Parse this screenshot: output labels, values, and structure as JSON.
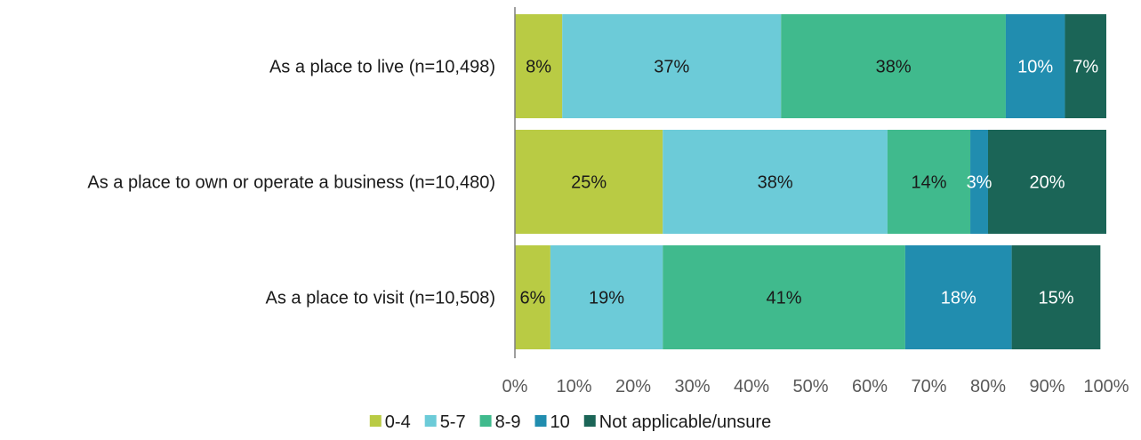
{
  "chart_data": {
    "type": "bar",
    "orientation": "horizontal",
    "stacked": true,
    "categories": [
      "As a place to live (n=10,498)",
      "As a place to own or operate a business (n=10,480)",
      "As a place to visit (n=10,508)"
    ],
    "series": [
      {
        "name": "0-4",
        "values": [
          8,
          25,
          6
        ],
        "labels": [
          "8%",
          "25%",
          "6%"
        ],
        "color": "#B9CB44",
        "label_color": "#1a1a1a"
      },
      {
        "name": "5-7",
        "values": [
          37,
          38,
          19
        ],
        "labels": [
          "37%",
          "38%",
          "19%"
        ],
        "color": "#6CCBD8",
        "label_color": "#1a1a1a"
      },
      {
        "name": "8-9",
        "values": [
          38,
          14,
          41
        ],
        "labels": [
          "38%",
          "14%",
          "41%"
        ],
        "color": "#40BA8D",
        "label_color": "#1a1a1a"
      },
      {
        "name": "10",
        "values": [
          10,
          3,
          18
        ],
        "labels": [
          "10%",
          "3%",
          "18%"
        ],
        "color": "#218DAF",
        "label_color": "#ffffff"
      },
      {
        "name": "Not applicable/unsure",
        "values": [
          7,
          20,
          15
        ],
        "labels": [
          "7%",
          "20%",
          "15%"
        ],
        "color": "#1B6557",
        "label_color": "#ffffff"
      }
    ],
    "x_ticks": [
      "0%",
      "10%",
      "20%",
      "30%",
      "40%",
      "50%",
      "60%",
      "70%",
      "80%",
      "90%",
      "100%"
    ],
    "xlim": [
      0,
      100
    ],
    "title": "",
    "xlabel": "",
    "ylabel": "",
    "grid": false,
    "legend": "bottom"
  }
}
